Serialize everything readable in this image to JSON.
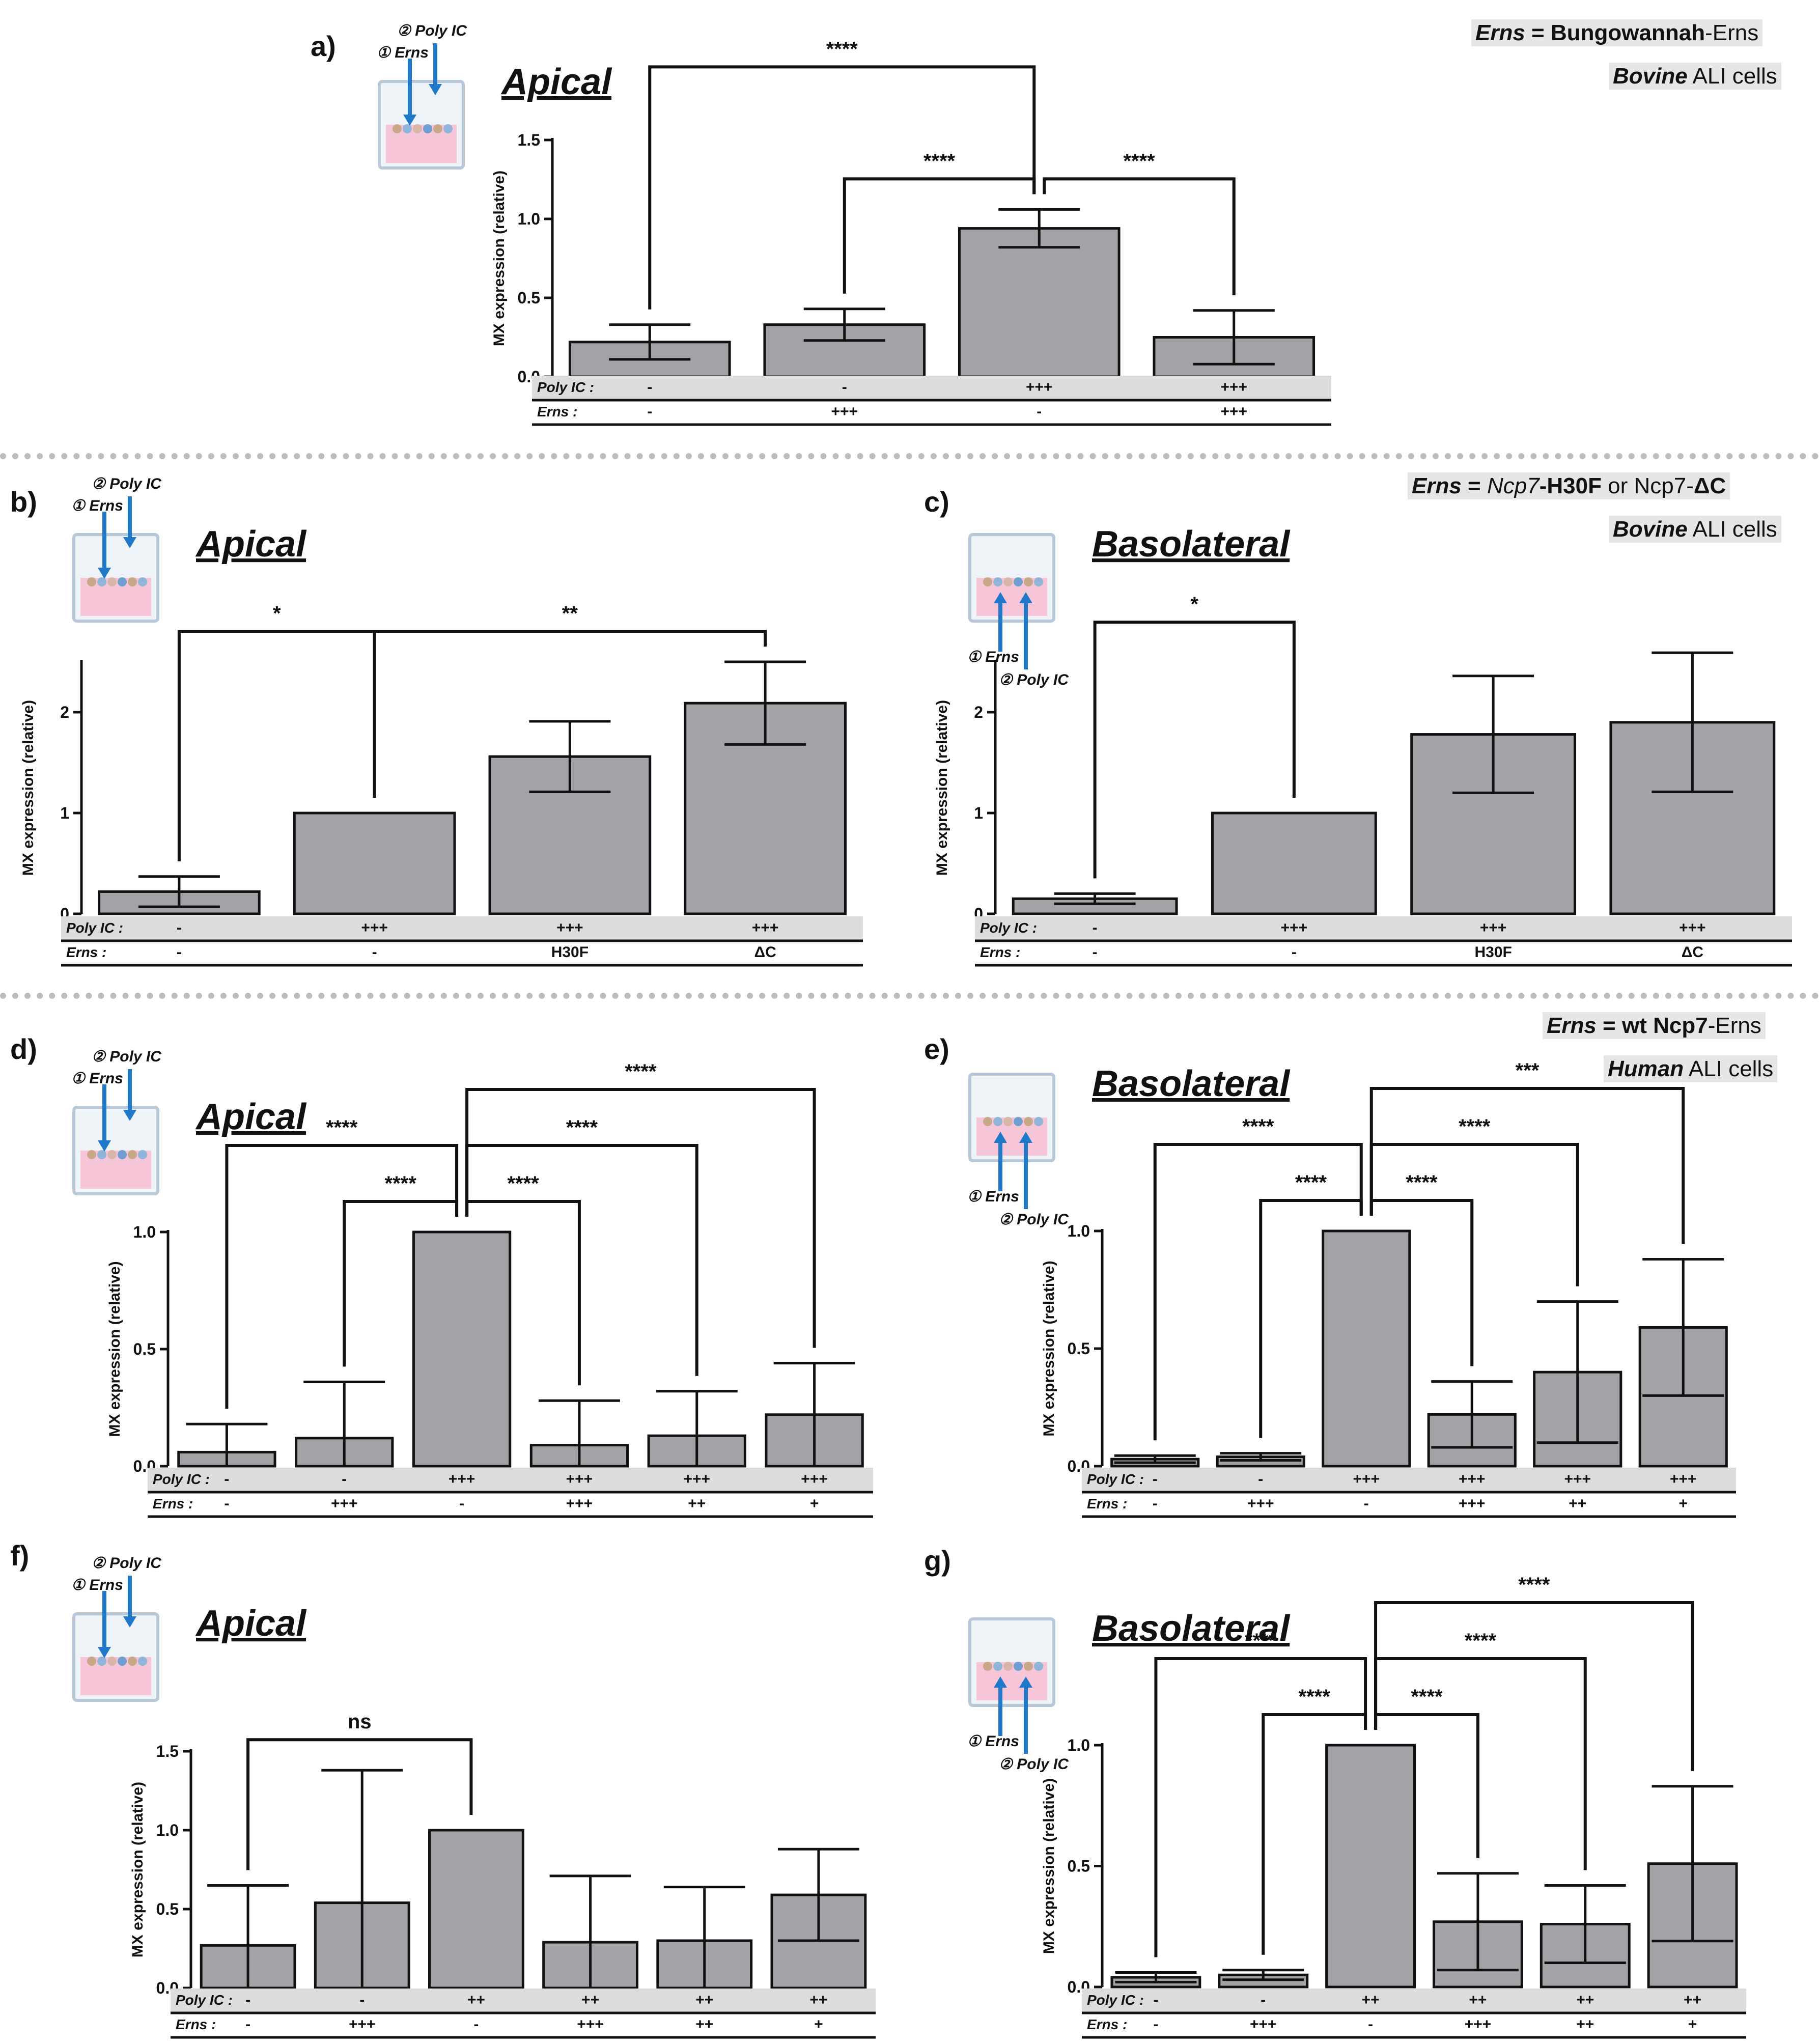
{
  "chart_data": [
    {
      "id": "a",
      "type": "bar",
      "panel_label": "a)",
      "title": "Apical",
      "method": "apical",
      "ylabel": "MX expression (relative)",
      "ylim": [
        0,
        1.5
      ],
      "yticks": [
        "0.0",
        "0.5",
        "1.0",
        "1.5"
      ],
      "ytick_values": [
        0,
        0.5,
        1,
        1.5
      ],
      "values": [
        0.22,
        0.33,
        0.94,
        0.25
      ],
      "errors": [
        0.11,
        0.1,
        0.12,
        0.17
      ],
      "row_labels": [
        "Poly IC :",
        "Erns :"
      ],
      "polyic": [
        "-",
        "-",
        "+++",
        "+++"
      ],
      "erns": [
        "-",
        "+++",
        "-",
        "+++"
      ],
      "sig": [
        {
          "from": 0,
          "to": 2,
          "text": "****",
          "level": 3
        },
        {
          "from": 1,
          "to": 2,
          "text": "****",
          "level": 1
        },
        {
          "from": 2,
          "to": 3,
          "text": "****",
          "level": 1
        }
      ]
    },
    {
      "id": "b",
      "type": "bar",
      "panel_label": "b)",
      "title": "Apical",
      "method": "apical",
      "ylabel": "MX expression (relative)",
      "ylim": [
        0,
        2.5
      ],
      "yticks": [
        "0",
        "1",
        "2"
      ],
      "ytick_values": [
        0,
        1,
        2
      ],
      "values": [
        0.22,
        1.0,
        1.56,
        2.09
      ],
      "errors": [
        0.15,
        0,
        0.35,
        0.41
      ],
      "row_labels": [
        "Poly IC :",
        "Erns :"
      ],
      "polyic": [
        "-",
        "+++",
        "+++",
        "+++"
      ],
      "erns": [
        "-",
        "-",
        "H30F",
        "ΔC"
      ],
      "sig": [
        {
          "from": 0,
          "to": 1,
          "text": "*",
          "level": 1
        },
        {
          "from": 1,
          "to": 3,
          "text": "**",
          "level": 1
        }
      ]
    },
    {
      "id": "c",
      "type": "bar",
      "panel_label": "c)",
      "title": "Basolateral",
      "method": "basolateral",
      "ylabel": "MX expression (relative)",
      "ylim": [
        0,
        2.5
      ],
      "yticks": [
        "0",
        "1",
        "2"
      ],
      "ytick_values": [
        0,
        1,
        2
      ],
      "values": [
        0.15,
        1.0,
        1.78,
        1.9
      ],
      "errors": [
        0.05,
        0,
        0.58,
        0.69
      ],
      "row_labels": [
        "Poly IC :",
        "Erns :"
      ],
      "polyic": [
        "-",
        "+++",
        "+++",
        "+++"
      ],
      "erns": [
        "-",
        "-",
        "H30F",
        "ΔC"
      ],
      "sig": [
        {
          "from": 0,
          "to": 1,
          "text": "*",
          "level": 1
        }
      ]
    },
    {
      "id": "d",
      "type": "bar",
      "panel_label": "d)",
      "title": "Apical",
      "method": "apical",
      "ylabel": "MX expression (relative)",
      "ylim": [
        0,
        1.0
      ],
      "yticks": [
        "0.0",
        "0.5",
        "1.0"
      ],
      "ytick_values": [
        0,
        0.5,
        1
      ],
      "values": [
        0.06,
        0.12,
        1.0,
        0.09,
        0.13,
        0.22
      ],
      "errors": [
        0.12,
        0.24,
        0,
        0.19,
        0.19,
        0.22
      ],
      "row_labels": [
        "Poly IC :",
        "Erns :"
      ],
      "polyic": [
        "-",
        "-",
        "+++",
        "+++",
        "+++",
        "+++"
      ],
      "erns": [
        "-",
        "+++",
        "-",
        "+++",
        "++",
        "+"
      ],
      "sig": [
        {
          "from": 1,
          "to": 2,
          "text": "****",
          "level": 1
        },
        {
          "from": 2,
          "to": 3,
          "text": "****",
          "level": 1
        },
        {
          "from": 0,
          "to": 2,
          "text": "****",
          "level": 2
        },
        {
          "from": 2,
          "to": 4,
          "text": "****",
          "level": 2
        },
        {
          "from": 2,
          "to": 5,
          "text": "****",
          "level": 3
        }
      ]
    },
    {
      "id": "e",
      "type": "bar",
      "panel_label": "e)",
      "title": "Basolateral",
      "method": "basolateral",
      "ylabel": "MX expression (relative)",
      "ylim": [
        0,
        1.0
      ],
      "yticks": [
        "0.0",
        "0.5",
        "1.0"
      ],
      "ytick_values": [
        0,
        0.5,
        1
      ],
      "values": [
        0.03,
        0.04,
        1.0,
        0.22,
        0.4,
        0.59
      ],
      "errors": [
        0.015,
        0.015,
        0,
        0.14,
        0.3,
        0.29
      ],
      "row_labels": [
        "Poly IC :",
        "Erns :"
      ],
      "polyic": [
        "-",
        "-",
        "+++",
        "+++",
        "+++",
        "+++"
      ],
      "erns": [
        "-",
        "+++",
        "-",
        "+++",
        "++",
        "+"
      ],
      "sig": [
        {
          "from": 1,
          "to": 2,
          "text": "****",
          "level": 1
        },
        {
          "from": 2,
          "to": 3,
          "text": "****",
          "level": 1
        },
        {
          "from": 0,
          "to": 2,
          "text": "****",
          "level": 2
        },
        {
          "from": 2,
          "to": 4,
          "text": "****",
          "level": 2
        },
        {
          "from": 2,
          "to": 5,
          "text": "***",
          "level": 3
        }
      ]
    },
    {
      "id": "f",
      "type": "bar",
      "panel_label": "f)",
      "title": "Apical",
      "method": "apical",
      "ylabel": "MX expression (relative)",
      "ylim": [
        0,
        1.5
      ],
      "yticks": [
        "0.0",
        "0.5",
        "1.0",
        "1.5"
      ],
      "ytick_values": [
        0,
        0.5,
        1,
        1.5
      ],
      "values": [
        0.27,
        0.54,
        1.0,
        0.29,
        0.3,
        0.59
      ],
      "errors": [
        0.38,
        0.84,
        0,
        0.42,
        0.34,
        0.29
      ],
      "row_labels": [
        "Poly IC :",
        "Erns :"
      ],
      "polyic": [
        "-",
        "-",
        "++",
        "++",
        "++",
        "++"
      ],
      "erns": [
        "-",
        "+++",
        "-",
        "+++",
        "++",
        "+"
      ],
      "sig": [
        {
          "from": 0,
          "to": 2,
          "text": "ns",
          "level": 1
        }
      ]
    },
    {
      "id": "g",
      "type": "bar",
      "panel_label": "g)",
      "title": "Basolateral",
      "method": "basolateral",
      "ylabel": "MX expression (relative)",
      "ylim": [
        0,
        1.0
      ],
      "yticks": [
        "0.0",
        "0.5",
        "1.0"
      ],
      "ytick_values": [
        0,
        0.5,
        1
      ],
      "values": [
        0.04,
        0.05,
        1.0,
        0.27,
        0.26,
        0.51
      ],
      "errors": [
        0.02,
        0.02,
        0,
        0.2,
        0.16,
        0.32
      ],
      "row_labels": [
        "Poly IC :",
        "Erns :"
      ],
      "polyic": [
        "-",
        "-",
        "++",
        "++",
        "++",
        "++"
      ],
      "erns": [
        "-",
        "+++",
        "-",
        "+++",
        "++",
        "+"
      ],
      "sig": [
        {
          "from": 1,
          "to": 2,
          "text": "****",
          "level": 1
        },
        {
          "from": 2,
          "to": 3,
          "text": "****",
          "level": 1
        },
        {
          "from": 0,
          "to": 2,
          "text": "****",
          "level": 2
        },
        {
          "from": 2,
          "to": 4,
          "text": "****",
          "level": 2
        },
        {
          "from": 2,
          "to": 5,
          "text": "****",
          "level": 3
        }
      ]
    }
  ],
  "legends": {
    "top": {
      "prefix": "Erns",
      "eq": " = ",
      "strain": "Bungowannah",
      "suffix": "-Erns",
      "cells_bold": "Bovine",
      "cells": " ALI cells"
    },
    "middle": {
      "prefix": "Erns",
      "eq": " = ",
      "strain_it": "Ncp7",
      "mut1": "-H30F",
      "or": " or Ncp7-",
      "mut2": "ΔC",
      "cells_bold": "Bovine",
      "cells": " ALI cells"
    },
    "bottom": {
      "prefix": "Erns",
      "eq": " = ",
      "strain": "wt Ncp7",
      "suffix": "-Erns",
      "cells_bold": "Human",
      "cells": " ALI cells"
    }
  },
  "icon_labels": {
    "step1": "① Erns",
    "step2": "② Poly IC"
  },
  "colors": {
    "bar": "#a2a3a7",
    "row_band": "#dcdcdc",
    "arrow": "#1f78c8",
    "well_pink": "#f6c6d8",
    "well_border": "#b8c8d8"
  }
}
